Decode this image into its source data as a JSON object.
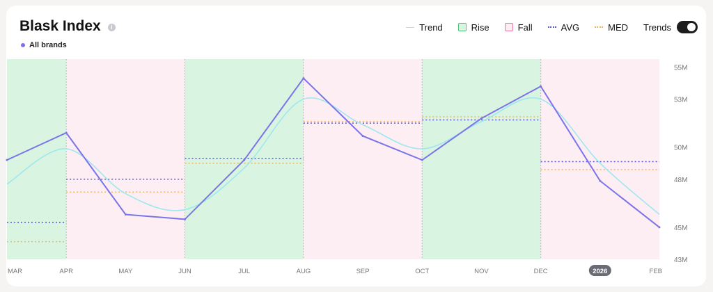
{
  "title": "Blask Index",
  "subtitle": "All brands",
  "legend": {
    "trend": "Trend",
    "rise": "Rise",
    "fall": "Fall",
    "avg": "AVG",
    "med": "MED",
    "trends_toggle": "Trends"
  },
  "colors": {
    "series": "#7b73ea",
    "trend": "#9ee7ef",
    "rise_bg": "#d9f5e1",
    "fall_bg": "#fdeef3",
    "avg": "#5a55d9",
    "med": "#f2b45a",
    "rise_border": "#52c47a",
    "fall_border": "#e87aa0"
  },
  "chart_data": {
    "type": "line",
    "x": [
      "MAR",
      "APR",
      "MAY",
      "JUN",
      "JUL",
      "AUG",
      "SEP",
      "OCT",
      "NOV",
      "DEC",
      "2026",
      "FEB"
    ],
    "highlighted_x": "2026",
    "series": [
      {
        "name": "All brands",
        "values": [
          49.2,
          50.9,
          45.8,
          45.5,
          49.2,
          54.3,
          50.7,
          49.2,
          51.8,
          53.8,
          47.9,
          45.0
        ]
      }
    ],
    "trend": [
      47.7,
      49.9,
      47.1,
      46.1,
      48.7,
      53.0,
      51.4,
      49.9,
      51.6,
      53.0,
      49.0,
      45.8
    ],
    "y_ticks": [
      "43M",
      "45M",
      "48M",
      "50M",
      "53M",
      "55M"
    ],
    "ylim": [
      43,
      55.5
    ],
    "periods": [
      {
        "type": "rise",
        "start": "MAR",
        "end": "APR",
        "avg": 45.3,
        "med": 44.1
      },
      {
        "type": "fall",
        "start": "APR",
        "end": "JUN",
        "avg": 48.0,
        "med": 47.2
      },
      {
        "type": "rise",
        "start": "JUN",
        "end": "AUG",
        "avg": 49.3,
        "med": 49.0
      },
      {
        "type": "fall",
        "start": "AUG",
        "end": "OCT",
        "avg": 51.5,
        "med": 51.6
      },
      {
        "type": "rise",
        "start": "OCT",
        "end": "DEC",
        "avg": 51.7,
        "med": 51.9
      },
      {
        "type": "fall",
        "start": "DEC",
        "end": "FEB",
        "avg": 49.1,
        "med": 48.6
      }
    ]
  }
}
